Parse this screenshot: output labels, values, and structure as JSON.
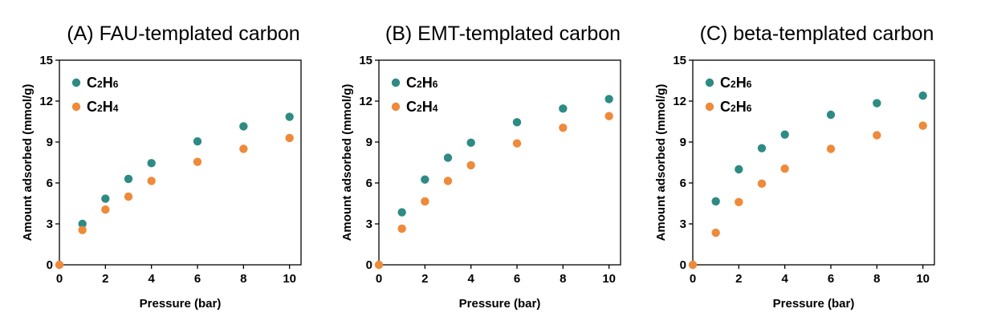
{
  "chart_data": [
    {
      "type": "scatter",
      "title": "(A) FAU-templated carbon",
      "xlabel": "Pressure (bar)",
      "ylabel": "Amount adsorbed (mmol/g)",
      "xlim": [
        0,
        10.5
      ],
      "ylim": [
        0,
        15
      ],
      "xticks": [
        0,
        2,
        4,
        6,
        8,
        10
      ],
      "yticks": [
        0,
        3,
        6,
        9,
        12,
        15
      ],
      "grid": false,
      "legend": "top-left",
      "series": [
        {
          "name": "C2H6",
          "sub": [
            "C",
            "2",
            "H",
            "6"
          ],
          "color": "#2e8b84",
          "x": [
            1,
            2,
            3,
            4,
            6,
            8,
            10
          ],
          "y": [
            3.0,
            4.85,
            6.3,
            7.45,
            9.05,
            10.15,
            10.85
          ]
        },
        {
          "name": "C2H4",
          "sub": [
            "C",
            "2",
            "H",
            "4"
          ],
          "color": "#ee8a3a",
          "x": [
            0,
            1,
            2,
            3,
            4,
            6,
            8,
            10
          ],
          "y": [
            0,
            2.55,
            4.05,
            5.0,
            6.15,
            7.55,
            8.5,
            9.3
          ]
        }
      ]
    },
    {
      "type": "scatter",
      "title": "(B) EMT-templated carbon",
      "xlabel": "Pressure (bar)",
      "ylabel": "Amount adsorbed (mmol/g)",
      "xlim": [
        0,
        10.5
      ],
      "ylim": [
        0,
        15
      ],
      "xticks": [
        0,
        2,
        4,
        6,
        8,
        10
      ],
      "yticks": [
        0,
        3,
        6,
        9,
        12,
        15
      ],
      "grid": false,
      "legend": "top-left",
      "series": [
        {
          "name": "C2H6",
          "sub": [
            "C",
            "2",
            "H",
            "6"
          ],
          "color": "#2e8b84",
          "x": [
            1,
            2,
            3,
            4,
            6,
            8,
            10
          ],
          "y": [
            3.85,
            6.25,
            7.85,
            8.95,
            10.45,
            11.45,
            12.15
          ]
        },
        {
          "name": "C2H4",
          "sub": [
            "C",
            "2",
            "H",
            "4"
          ],
          "color": "#ee8a3a",
          "x": [
            0,
            1,
            2,
            3,
            4,
            6,
            8,
            10
          ],
          "y": [
            0,
            2.65,
            4.65,
            6.15,
            7.3,
            8.9,
            10.05,
            10.9
          ]
        }
      ]
    },
    {
      "type": "scatter",
      "title": "(C) beta-templated carbon",
      "xlabel": "Pressure (bar)",
      "ylabel": "Amount adsorbed (mmol/g)",
      "xlim": [
        0,
        10.5
      ],
      "ylim": [
        0,
        15
      ],
      "xticks": [
        0,
        2,
        4,
        6,
        8,
        10
      ],
      "yticks": [
        0,
        3,
        6,
        9,
        12,
        15
      ],
      "grid": false,
      "legend": "top-left",
      "series": [
        {
          "name": "C2H6",
          "sub": [
            "C",
            "2",
            "H",
            "6"
          ],
          "color": "#2e8b84",
          "x": [
            1,
            2,
            3,
            4,
            6,
            8,
            10
          ],
          "y": [
            4.65,
            7.0,
            8.55,
            9.55,
            11.0,
            11.85,
            12.4
          ]
        },
        {
          "name": "C2H6",
          "sub": [
            "C",
            "2",
            "H",
            "6"
          ],
          "color": "#ee8a3a",
          "x": [
            0,
            1,
            2,
            3,
            4,
            6,
            8,
            10
          ],
          "y": [
            0,
            2.35,
            4.6,
            5.95,
            7.05,
            8.5,
            9.5,
            10.2
          ]
        }
      ]
    }
  ]
}
